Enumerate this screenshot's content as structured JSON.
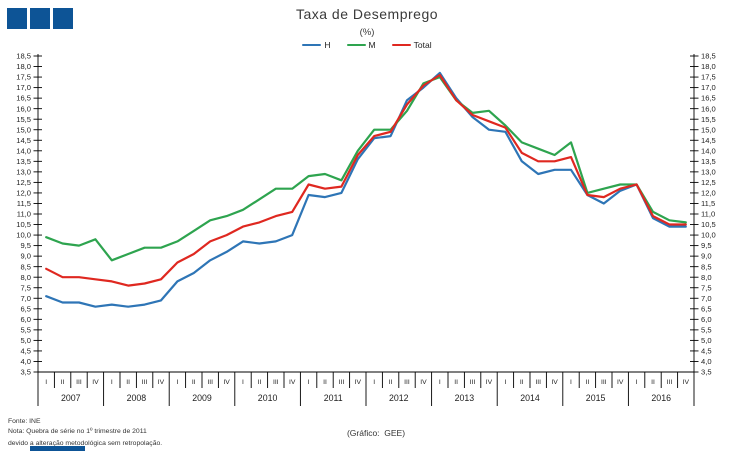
{
  "brand": {
    "logo_color": "#0d5496"
  },
  "header": {
    "title": "Taxa de Desemprego",
    "subtitle": "(%)"
  },
  "legend": [
    {
      "label": "H",
      "color": "#2e75b6"
    },
    {
      "label": "M",
      "color": "#2ea44f"
    },
    {
      "label": "Total",
      "color": "#df2820"
    }
  ],
  "footer": {
    "source": "Fonte: INE",
    "note_line1": "Nota: Quebra de série no 1º trimestre de 2011",
    "note_line2": "devido a alteração metodológica sem retropolação.",
    "credit": "(Gráfico:  GEE)"
  },
  "chart_data": {
    "type": "line",
    "title": "Taxa de Desemprego",
    "subtitle": "(%)",
    "ylim": [
      3.5,
      18.5
    ],
    "ytick_step": 0.5,
    "decimal_separator": ",",
    "grid": false,
    "legend_position": "top-center",
    "axes_note": "identical y-axis on left and right, no y-axis title",
    "years": [
      2007,
      2008,
      2009,
      2010,
      2011,
      2012,
      2013,
      2014,
      2015,
      2016
    ],
    "quarter_labels": [
      "I",
      "II",
      "III",
      "IV"
    ],
    "categories": [
      "2007-I",
      "2007-II",
      "2007-III",
      "2007-IV",
      "2008-I",
      "2008-II",
      "2008-III",
      "2008-IV",
      "2009-I",
      "2009-II",
      "2009-III",
      "2009-IV",
      "2010-I",
      "2010-II",
      "2010-III",
      "2010-IV",
      "2011-I",
      "2011-II",
      "2011-III",
      "2011-IV",
      "2012-I",
      "2012-II",
      "2012-III",
      "2012-IV",
      "2013-I",
      "2013-II",
      "2013-III",
      "2013-IV",
      "2014-I",
      "2014-II",
      "2014-III",
      "2014-IV",
      "2015-I",
      "2015-II",
      "2015-III",
      "2015-IV",
      "2016-I",
      "2016-II",
      "2016-III",
      "2016-IV"
    ],
    "series": [
      {
        "name": "H",
        "color": "#2e75b6",
        "values": [
          7.1,
          6.8,
          6.8,
          6.6,
          6.7,
          6.6,
          6.7,
          6.9,
          7.8,
          8.2,
          8.8,
          9.2,
          9.7,
          9.6,
          9.7,
          10.0,
          11.9,
          11.8,
          12.0,
          13.6,
          14.6,
          14.7,
          16.4,
          17.0,
          17.7,
          16.5,
          15.6,
          15.0,
          14.9,
          13.5,
          12.9,
          13.1,
          13.1,
          11.9,
          11.5,
          12.1,
          12.4,
          10.8,
          10.4,
          10.4
        ]
      },
      {
        "name": "M",
        "color": "#2ea44f",
        "values": [
          9.9,
          9.6,
          9.5,
          9.8,
          8.8,
          9.1,
          9.4,
          9.4,
          9.7,
          10.2,
          10.7,
          10.9,
          11.2,
          11.7,
          12.2,
          12.2,
          12.8,
          12.9,
          12.6,
          14.0,
          15.0,
          15.0,
          15.9,
          17.2,
          17.5,
          16.4,
          15.8,
          15.9,
          15.2,
          14.4,
          14.1,
          13.8,
          14.4,
          12.0,
          12.2,
          12.4,
          12.4,
          11.1,
          10.7,
          10.6
        ]
      },
      {
        "name": "Total",
        "color": "#df2820",
        "values": [
          8.4,
          8.0,
          8.0,
          7.9,
          7.8,
          7.6,
          7.7,
          7.9,
          8.7,
          9.1,
          9.7,
          10.0,
          10.4,
          10.6,
          10.9,
          11.1,
          12.4,
          12.2,
          12.3,
          13.8,
          14.7,
          14.9,
          16.2,
          17.1,
          17.6,
          16.4,
          15.7,
          15.4,
          15.1,
          13.9,
          13.5,
          13.5,
          13.7,
          11.9,
          11.8,
          12.2,
          12.4,
          10.9,
          10.5,
          10.5
        ]
      }
    ]
  }
}
